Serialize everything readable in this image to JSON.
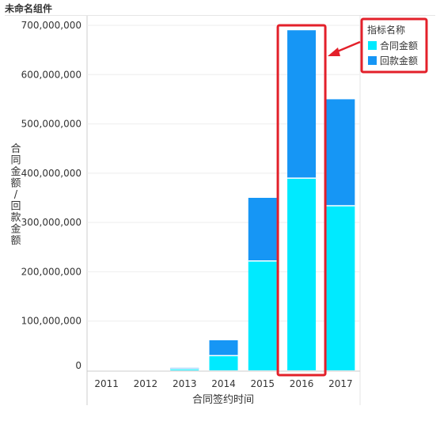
{
  "widget": {
    "title": "未命名组件"
  },
  "colors": {
    "series_contract": "#00eaff",
    "series_payment": "#1696f5",
    "highlight": "#e3202a",
    "grid": "#eeeeee",
    "axis": "#cccccc"
  },
  "chart_data": {
    "type": "bar",
    "stacked": true,
    "xlabel": "合同签约时间",
    "ylabel": "合同金额/回款金额",
    "categories": [
      "2011",
      "2012",
      "2013",
      "2014",
      "2015",
      "2016",
      "2017"
    ],
    "series": [
      {
        "name": "合同金额",
        "values": [
          0,
          0,
          3000000,
          30000000,
          222000000,
          390000000,
          334000000
        ]
      },
      {
        "name": "回款金额",
        "values": [
          0,
          0,
          2000000,
          31000000,
          128000000,
          300000000,
          216000000
        ]
      }
    ],
    "ylim": [
      0,
      700000000
    ],
    "yticks": [
      "0",
      "100,000,000",
      "200,000,000",
      "300,000,000",
      "400,000,000",
      "500,000,000",
      "600,000,000",
      "700,000,000"
    ],
    "legend": {
      "title": "指标名称",
      "position": "top-right"
    },
    "grid": true,
    "highlight_category": "2016"
  }
}
